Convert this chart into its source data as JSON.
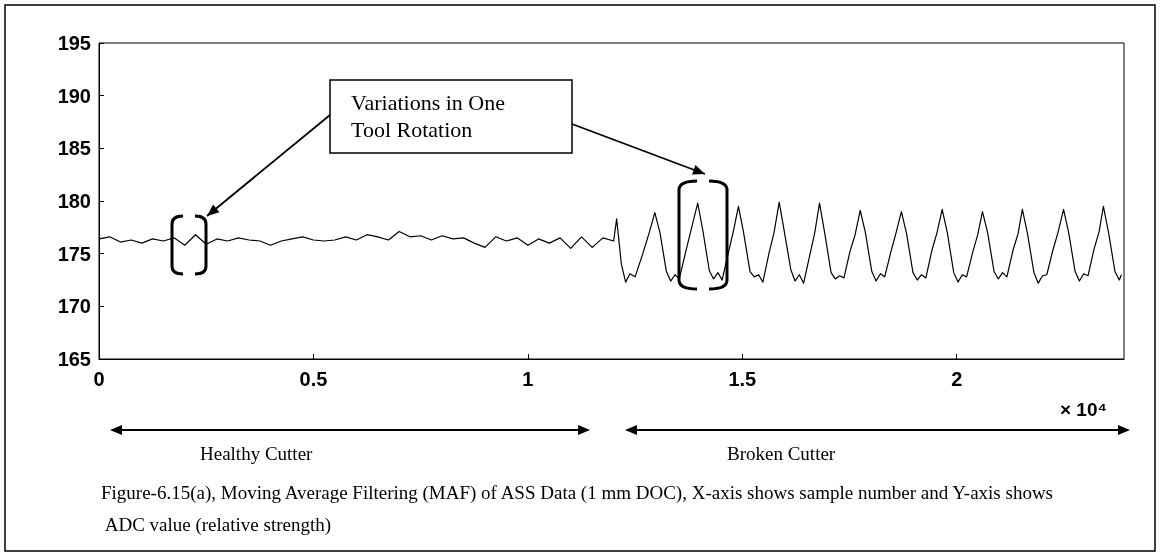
{
  "chart_data": {
    "type": "line",
    "xlim": [
      0,
      2.39
    ],
    "xticks": [
      0,
      0.5,
      1,
      1.5,
      2
    ],
    "ylim": [
      165,
      195
    ],
    "yticks": [
      165,
      170,
      175,
      180,
      185,
      190,
      195
    ],
    "grid": false,
    "marker": "none",
    "line_style": "solid",
    "annotations": [
      "Variations in One Tool Rotation",
      "× 10⁴",
      "Healthy Cutter",
      "Broken Cutter",
      "Figure-6.15(a), Moving Average Filtering (MAF) of ASS Data (1 mm DOC), X-axis shows sample number and Y-axis shows ADC value (relative strength)"
    ],
    "series": [
      {
        "color": "#000000",
        "x": [
          0,
          0.025,
          0.05,
          0.075,
          0.1,
          0.125,
          0.15,
          0.175,
          0.2,
          0.225,
          0.25,
          0.275,
          0.3,
          0.325,
          0.35,
          0.375,
          0.4,
          0.425,
          0.45,
          0.475,
          0.5,
          0.525,
          0.55,
          0.575,
          0.6,
          0.625,
          0.65,
          0.675,
          0.7,
          0.725,
          0.75,
          0.775,
          0.8,
          0.825,
          0.85,
          0.875,
          0.9,
          0.925,
          0.95,
          0.975,
          1,
          1.025,
          1.05,
          1.075,
          1.1,
          1.125,
          1.15,
          1.175,
          1.2,
          1.207,
          1.218,
          1.228,
          1.238,
          1.25,
          1.268,
          1.283,
          1.296,
          1.308,
          1.323,
          1.333,
          1.343,
          1.353,
          1.367,
          1.379,
          1.396,
          1.408,
          1.423,
          1.433,
          1.443,
          1.453,
          1.467,
          1.479,
          1.491,
          1.503,
          1.518,
          1.528,
          1.538,
          1.548,
          1.562,
          1.574,
          1.586,
          1.598,
          1.613,
          1.623,
          1.633,
          1.643,
          1.657,
          1.669,
          1.68,
          1.692,
          1.707,
          1.717,
          1.727,
          1.737,
          1.751,
          1.763,
          1.775,
          1.787,
          1.802,
          1.812,
          1.822,
          1.832,
          1.846,
          1.858,
          1.871,
          1.883,
          1.898,
          1.908,
          1.918,
          1.928,
          1.942,
          1.954,
          1.966,
          1.978,
          1.993,
          2.003,
          2.013,
          2.023,
          2.037,
          2.049,
          2.06,
          2.072,
          2.087,
          2.097,
          2.107,
          2.117,
          2.131,
          2.143,
          2.153,
          2.165,
          2.18,
          2.19,
          2.2,
          2.21,
          2.224,
          2.236,
          2.249,
          2.261,
          2.276,
          2.286,
          2.296,
          2.306,
          2.32,
          2.332,
          2.342,
          2.354,
          2.369,
          2.379,
          2.384
        ],
        "values": [
          176.4,
          176.6,
          176.1,
          176.3,
          176.0,
          176.4,
          176.2,
          176.5,
          175.8,
          176.8,
          175.9,
          176.4,
          176.2,
          176.5,
          176.3,
          176.2,
          175.8,
          176.2,
          176.4,
          176.6,
          176.3,
          176.2,
          176.3,
          176.6,
          176.3,
          176.8,
          176.6,
          176.3,
          177.1,
          176.6,
          176.7,
          176.3,
          176.7,
          176.4,
          176.5,
          176.0,
          175.6,
          176.6,
          176.2,
          176.5,
          175.8,
          176.4,
          176.0,
          176.5,
          175.5,
          176.6,
          175.6,
          176.5,
          176.2,
          178.3,
          174.0,
          172.3,
          173.1,
          172.8,
          175.0,
          177.0,
          178.9,
          177.0,
          173.3,
          172.4,
          173.0,
          172.6,
          175.0,
          177.0,
          179.8,
          177.2,
          173.4,
          172.6,
          173.2,
          172.5,
          175.0,
          177.1,
          179.5,
          177.0,
          173.3,
          172.8,
          173.0,
          172.3,
          175.0,
          177.0,
          179.9,
          177.1,
          173.5,
          172.4,
          173.0,
          172.2,
          174.8,
          177.0,
          179.8,
          177.0,
          173.2,
          172.6,
          172.9,
          172.7,
          175.2,
          176.8,
          179.1,
          177.0,
          173.3,
          172.4,
          173.1,
          172.8,
          175.1,
          176.9,
          179.0,
          176.9,
          173.2,
          172.5,
          173.0,
          172.7,
          175.3,
          177.0,
          179.2,
          177.0,
          173.2,
          172.3,
          173.0,
          172.8,
          175.1,
          176.8,
          179.0,
          177.0,
          173.3,
          172.6,
          173.2,
          172.8,
          175.3,
          176.9,
          179.2,
          176.9,
          173.2,
          172.2,
          172.9,
          173.0,
          175.3,
          177.0,
          179.2,
          177.0,
          173.3,
          172.4,
          173.1,
          172.9,
          175.4,
          177.1,
          179.5,
          177.0,
          173.3,
          172.5,
          173.0
        ]
      }
    ]
  }
}
